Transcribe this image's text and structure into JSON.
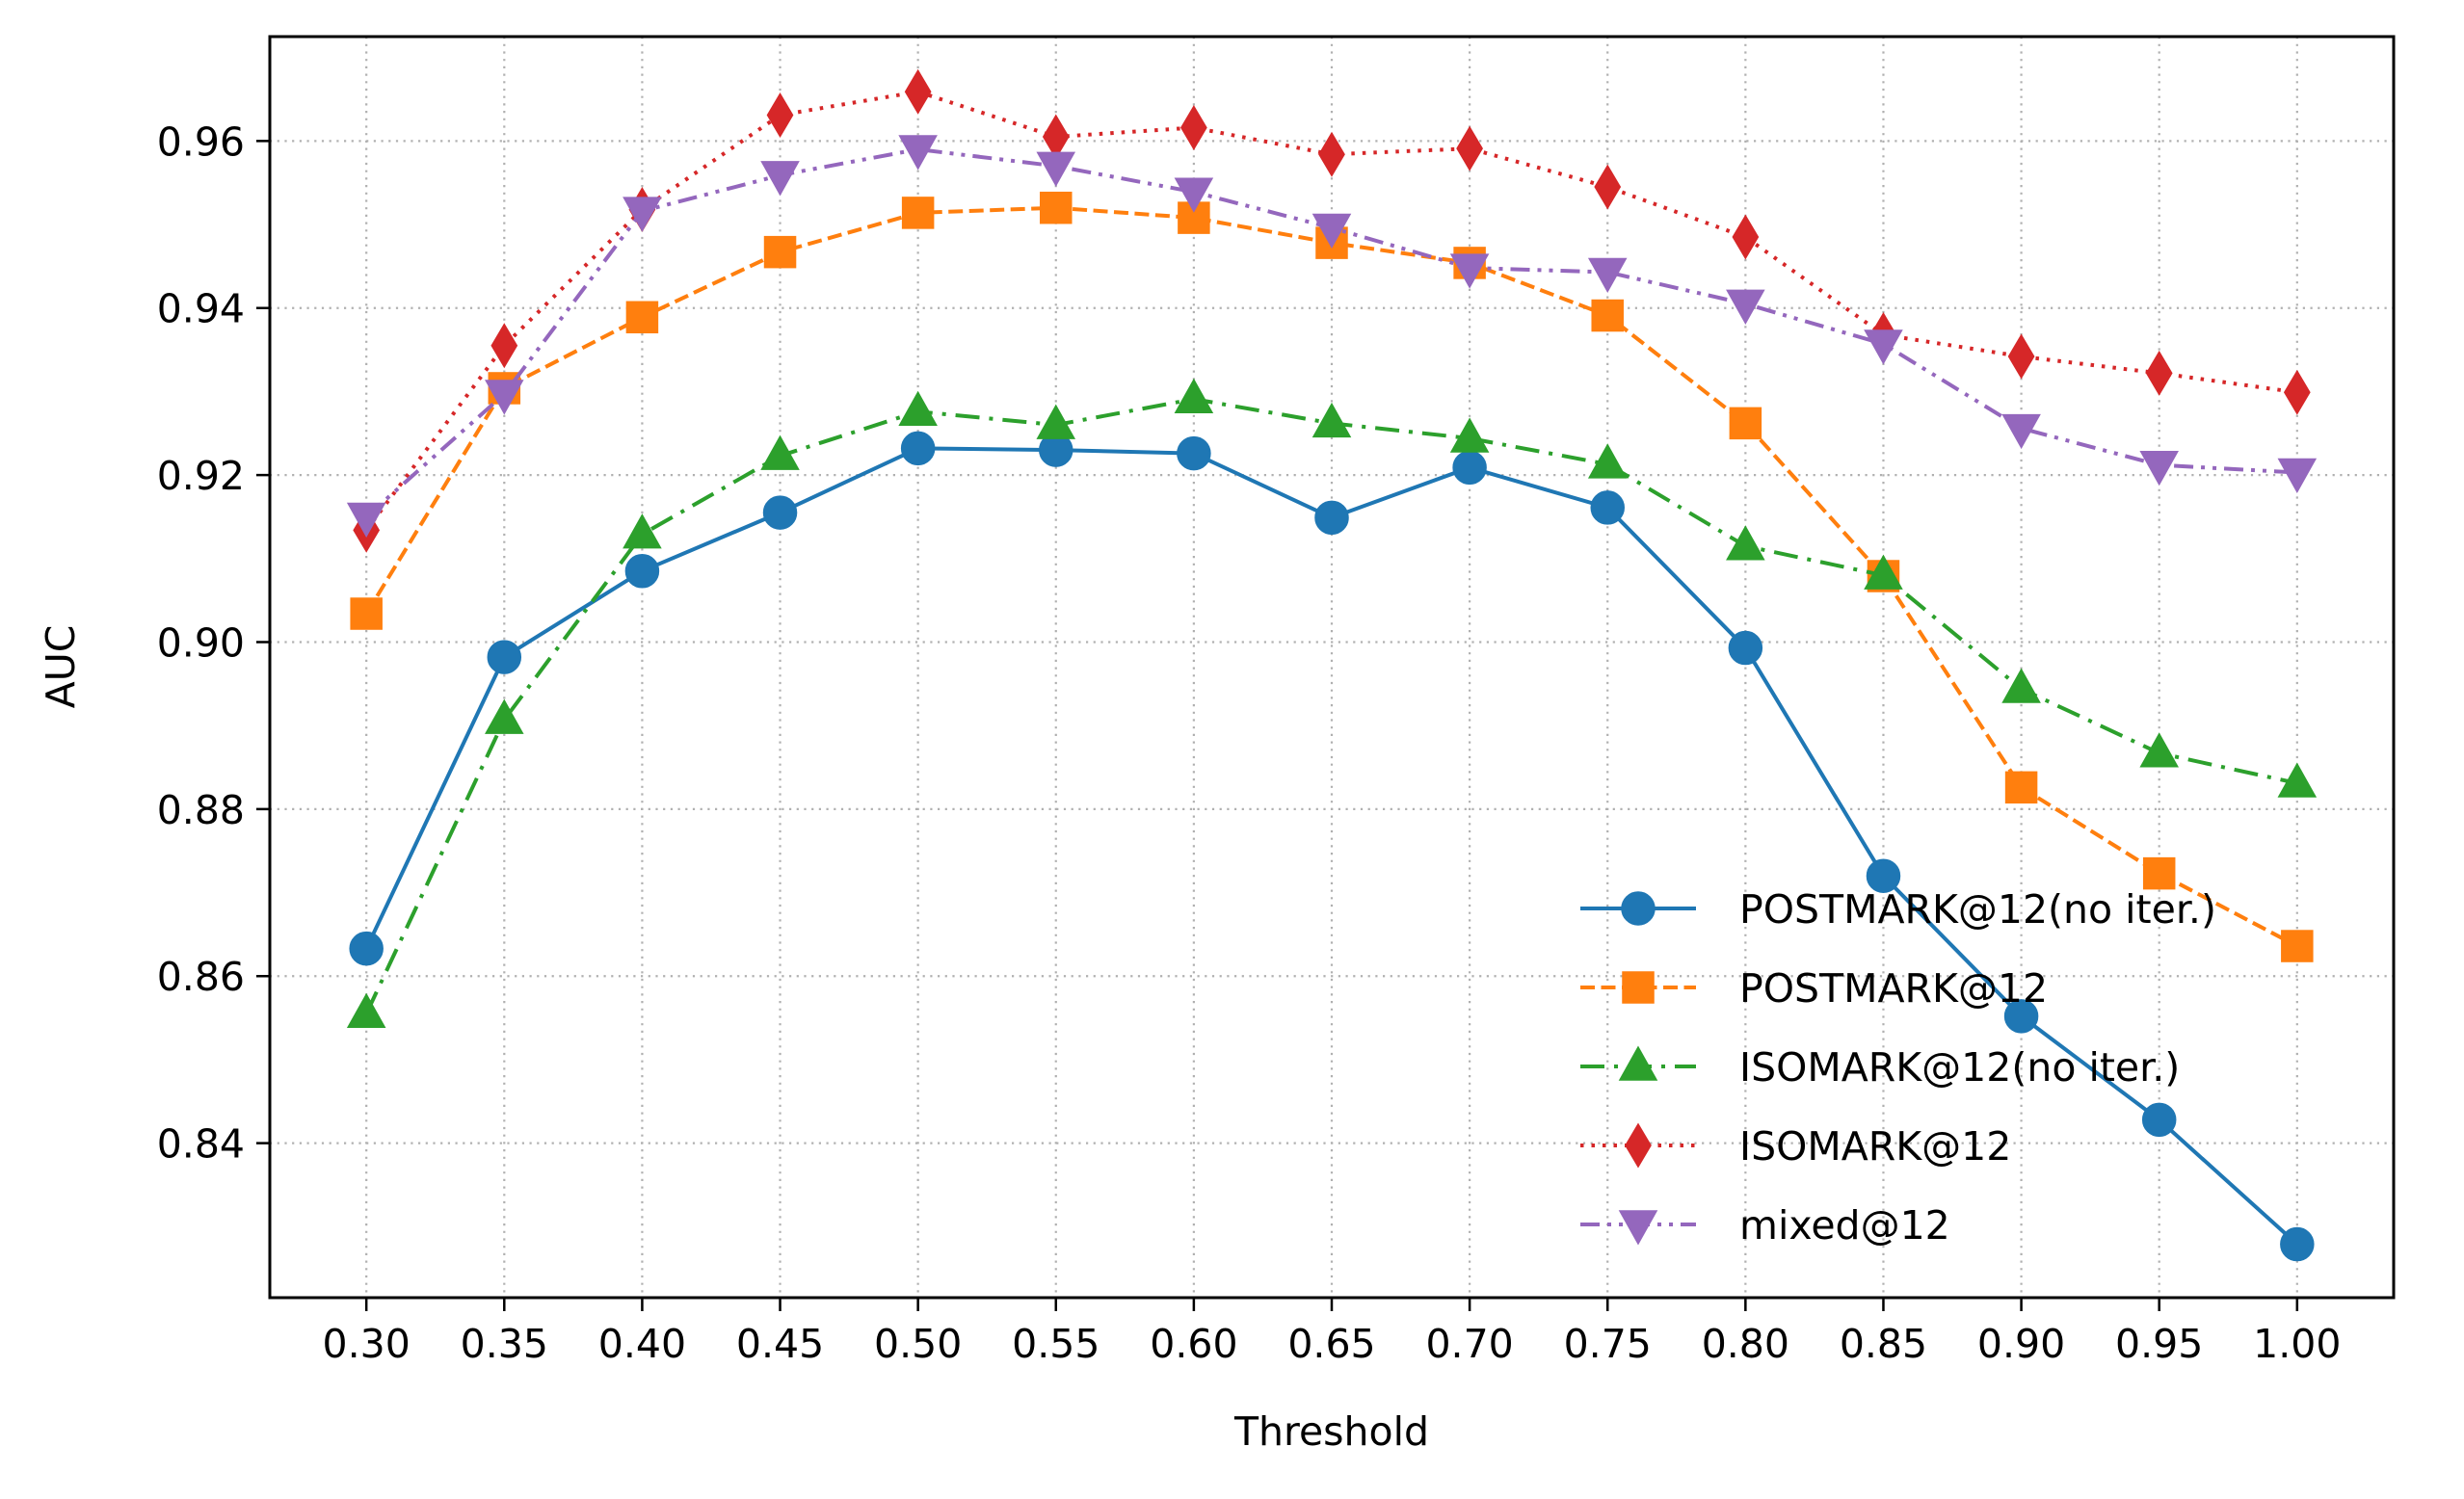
{
  "chart_data": {
    "type": "line",
    "xlabel": "Threshold",
    "ylabel": "AUC",
    "x": [
      0.3,
      0.35,
      0.4,
      0.45,
      0.5,
      0.55,
      0.6,
      0.65,
      0.7,
      0.75,
      0.8,
      0.85,
      0.9,
      0.95,
      1.0
    ],
    "x_tick_labels": [
      "0.30",
      "0.35",
      "0.40",
      "0.45",
      "0.50",
      "0.55",
      "0.60",
      "0.65",
      "0.70",
      "0.75",
      "0.80",
      "0.85",
      "0.90",
      "0.95",
      "1.00"
    ],
    "y_ticks": [
      0.84,
      0.86,
      0.88,
      0.9,
      0.92,
      0.94,
      0.96
    ],
    "y_tick_labels": [
      "0.84",
      "0.86",
      "0.88",
      "0.90",
      "0.92",
      "0.94",
      "0.96"
    ],
    "xlim": [
      0.265,
      1.035
    ],
    "ylim": [
      0.8215,
      0.9725
    ],
    "grid": true,
    "legend_position": "lower-right",
    "series": [
      {
        "name": "POSTMARK@12(no iter.)",
        "color": "#1f77b4",
        "marker": "circle",
        "linestyle": "solid",
        "values": [
          0.8633,
          0.8982,
          0.9085,
          0.9155,
          0.9232,
          0.923,
          0.9226,
          0.9149,
          0.9209,
          0.9161,
          0.8993,
          0.872,
          0.8552,
          0.8428,
          0.8279
        ]
      },
      {
        "name": "POSTMARK@12",
        "color": "#ff7f0e",
        "marker": "square",
        "linestyle": "dashed",
        "values": [
          0.9034,
          0.9304,
          0.9389,
          0.9467,
          0.9514,
          0.952,
          0.9508,
          0.9478,
          0.9454,
          0.9391,
          0.9262,
          0.9079,
          0.8826,
          0.8723,
          0.8636
        ]
      },
      {
        "name": "ISOMARK@12(no iter.)",
        "color": "#2ca02c",
        "marker": "triangle-up",
        "linestyle": "dashdot",
        "values": [
          0.8555,
          0.8907,
          0.9129,
          0.9223,
          0.9276,
          0.926,
          0.9291,
          0.9262,
          0.9244,
          0.9213,
          0.9115,
          0.908,
          0.8944,
          0.8867,
          0.8831
        ]
      },
      {
        "name": "ISOMARK@12",
        "color": "#d62728",
        "marker": "thin-diamond",
        "linestyle": "dotted",
        "values": [
          0.9134,
          0.9355,
          0.9518,
          0.9631,
          0.9659,
          0.9605,
          0.9616,
          0.9584,
          0.9591,
          0.9545,
          0.9485,
          0.9368,
          0.9342,
          0.9322,
          0.9299
        ]
      },
      {
        "name": "mixed@12",
        "color": "#9467bd",
        "marker": "triangle-down",
        "linestyle": "dashdotdot",
        "values": [
          0.915,
          0.9297,
          0.9516,
          0.9559,
          0.959,
          0.957,
          0.9539,
          0.9496,
          0.9448,
          0.9443,
          0.9405,
          0.9357,
          0.9256,
          0.9212,
          0.9203
        ]
      }
    ]
  }
}
